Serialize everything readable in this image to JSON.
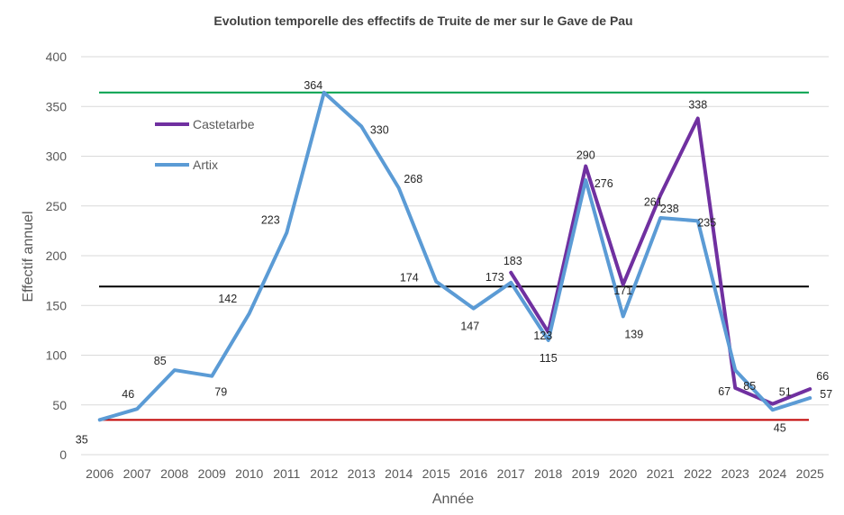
{
  "chart_data": {
    "type": "line",
    "title": "Evolution temporelle des effectifs de Truite de mer sur le Gave de Pau",
    "xlabel": "Année",
    "ylabel": "Effectif annuel",
    "ylim": [
      0,
      400
    ],
    "yticks": [
      "0",
      "50",
      "100",
      "150",
      "200",
      "250",
      "300",
      "350",
      "400"
    ],
    "grid": true,
    "legend_position": "top-left",
    "categories": [
      "2006",
      "2007",
      "2008",
      "2009",
      "2010",
      "2011",
      "2012",
      "2013",
      "2014",
      "2015",
      "2016",
      "2017",
      "2018",
      "2019",
      "2020",
      "2021",
      "2022",
      "2023",
      "2024",
      "2025"
    ],
    "series": [
      {
        "name": "Castetarbe",
        "color": "#7030a0",
        "values": [
          null,
          null,
          null,
          null,
          null,
          null,
          null,
          null,
          null,
          null,
          null,
          183,
          123,
          290,
          171,
          261,
          338,
          67,
          51,
          66
        ],
        "labels": [
          "",
          "",
          "",
          "",
          "",
          "",
          "",
          "",
          "",
          "",
          "",
          "183",
          "123",
          "290",
          "171",
          "261",
          "338",
          "67",
          "51",
          "66"
        ]
      },
      {
        "name": "Artix",
        "color": "#5b9bd5",
        "values": [
          35,
          46,
          85,
          79,
          142,
          223,
          364,
          330,
          268,
          174,
          147,
          173,
          115,
          276,
          139,
          238,
          235,
          85,
          45,
          57
        ],
        "labels": [
          "35",
          "46",
          "85",
          "79",
          "142",
          "223",
          "364",
          "330",
          "268",
          "174",
          "147",
          "173",
          "115",
          "276",
          "139",
          "238",
          "235",
          "85",
          "45",
          "57"
        ]
      }
    ],
    "reference_lines": [
      {
        "value": 364,
        "color": "#00a04a"
      },
      {
        "value": 169,
        "color": "#000000"
      },
      {
        "value": 35,
        "color": "#c00000"
      }
    ]
  }
}
